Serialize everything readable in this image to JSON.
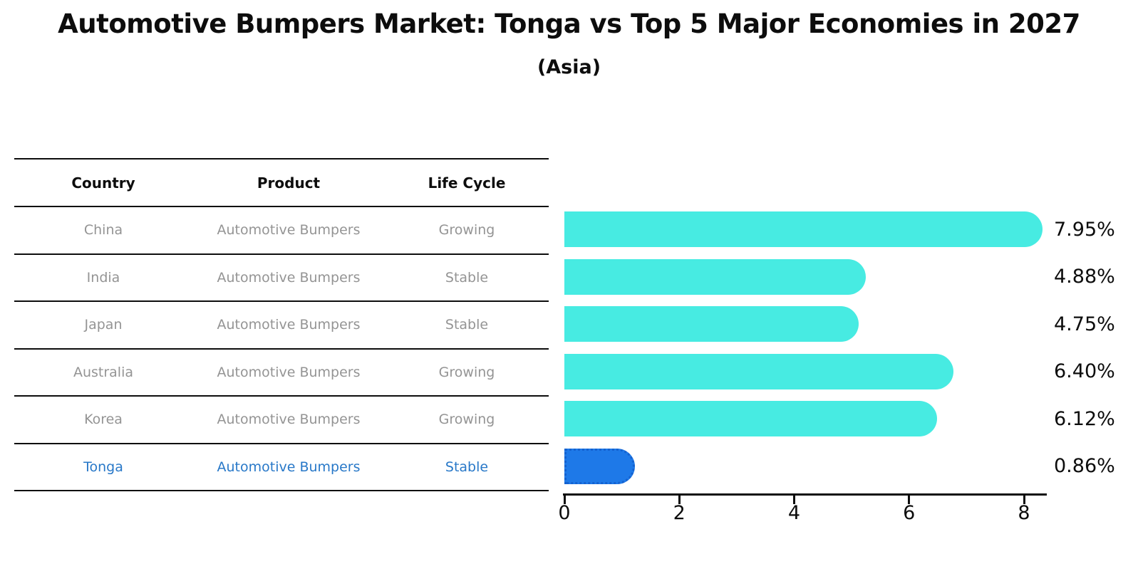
{
  "title": "Automotive Bumpers Market: Tonga vs Top 5 Major Economies in 2027",
  "subtitle": "(Asia)",
  "table": {
    "columns": [
      "Country",
      "Product",
      "Life Cycle"
    ],
    "rows": [
      {
        "country": "China",
        "product": "Automotive Bumpers",
        "life_cycle": "Growing",
        "highlight": false
      },
      {
        "country": "India",
        "product": "Automotive Bumpers",
        "life_cycle": "Stable",
        "highlight": false
      },
      {
        "country": "Japan",
        "product": "Automotive Bumpers",
        "life_cycle": "Stable",
        "highlight": false
      },
      {
        "country": "Australia",
        "product": "Automotive Bumpers",
        "life_cycle": "Growing",
        "highlight": false
      },
      {
        "country": "Korea",
        "product": "Automotive Bumpers",
        "life_cycle": "Growing",
        "highlight": false
      },
      {
        "country": "Tonga",
        "product": "Automotive Bumpers",
        "life_cycle": "Stable",
        "highlight": true
      }
    ]
  },
  "chart_data": {
    "type": "bar",
    "orientation": "horizontal",
    "title": "Automotive Bumpers Market: Tonga vs Top 5 Major Economies in 2027",
    "subtitle": "(Asia)",
    "categories": [
      "China",
      "India",
      "Japan",
      "Australia",
      "Korea",
      "Tonga"
    ],
    "values": [
      7.95,
      4.88,
      4.75,
      6.4,
      6.12,
      0.86
    ],
    "value_labels": [
      "7.95%",
      "4.88%",
      "4.75%",
      "6.40%",
      "6.12%",
      "0.86%"
    ],
    "xlim": [
      0,
      8.4
    ],
    "xticks": [
      0,
      2,
      4,
      6,
      8
    ],
    "grid": false,
    "legend": "none",
    "bar_color": "#47ebe2",
    "highlight_color": "#1e79e8",
    "highlight_index": 5,
    "highlight_text_color": "#2878c8",
    "text_color": "#949494",
    "axis_color": "#0d0d0d"
  }
}
